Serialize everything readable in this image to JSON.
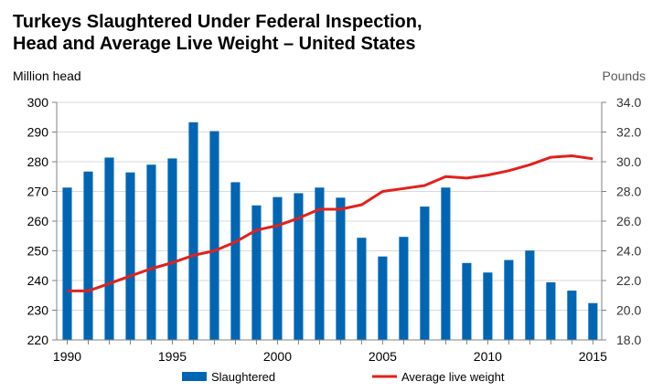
{
  "chart_data": {
    "type": "bar",
    "title_lines": [
      "Turkeys Slaughtered Under Federal Inspection,",
      "Head and Average Live Weight – United States"
    ],
    "ylabel_left": "Million head",
    "ylabel_right": "Pounds",
    "x": [
      1990,
      1991,
      1992,
      1993,
      1994,
      1995,
      1996,
      1997,
      1998,
      1999,
      2000,
      2001,
      2002,
      2003,
      2004,
      2005,
      2006,
      2007,
      2008,
      2009,
      2010,
      2011,
      2012,
      2013,
      2014,
      2015
    ],
    "x_ticks": [
      1990,
      1995,
      2000,
      2005,
      2010,
      2015
    ],
    "ylim_left": [
      220,
      300
    ],
    "yticks_left": [
      220,
      230,
      240,
      250,
      260,
      270,
      280,
      290,
      300
    ],
    "ylim_right": [
      18.0,
      34.0
    ],
    "yticks_right": [
      "18.0",
      "20.0",
      "22.0",
      "24.0",
      "26.0",
      "28.0",
      "30.0",
      "32.0",
      "34.0"
    ],
    "series": [
      {
        "name": "Slaughtered",
        "type": "bar",
        "axis": "left",
        "color": "#0066b3",
        "values": [
          271.3,
          276.7,
          281.4,
          276.4,
          279.0,
          281.1,
          293.3,
          290.3,
          273.1,
          265.3,
          268.1,
          269.4,
          271.3,
          267.9,
          254.4,
          248.1,
          254.7,
          264.9,
          271.3,
          245.9,
          242.7,
          246.9,
          250.1,
          239.4,
          236.6,
          232.4
        ]
      },
      {
        "name": "Average live weight",
        "type": "line",
        "axis": "right",
        "color": "#e2211c",
        "values": [
          21.3,
          21.3,
          21.8,
          22.3,
          22.8,
          23.2,
          23.7,
          24.0,
          24.6,
          25.4,
          25.7,
          26.2,
          26.8,
          26.8,
          27.1,
          28.0,
          28.2,
          28.4,
          29.0,
          28.9,
          29.1,
          29.4,
          29.8,
          30.3,
          30.4,
          30.2
        ]
      }
    ],
    "grid": true,
    "legend_position": "bottom"
  }
}
